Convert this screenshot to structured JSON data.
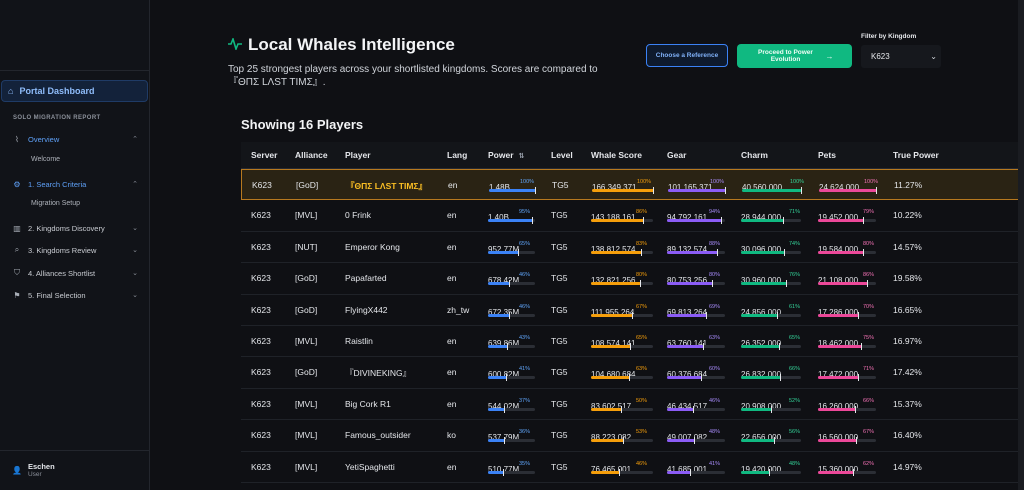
{
  "sidebar": {
    "dashboard": "Portal Dashboard",
    "section": "SOLO MIGRATION REPORT",
    "items": [
      {
        "label": "Overview",
        "icon": "activity-icon",
        "glyph": "⌇"
      },
      {
        "label": "1. Search Criteria",
        "icon": "gear-icon",
        "glyph": "⚙"
      },
      {
        "label": "2. Kingdoms Discovery",
        "icon": "map-icon",
        "glyph": "▥"
      },
      {
        "label": "3. Kingdoms Review",
        "icon": "search-icon",
        "glyph": "⌕"
      },
      {
        "label": "4. Alliances Shortlist",
        "icon": "shield-icon",
        "glyph": "⛉"
      },
      {
        "label": "5. Final Selection",
        "icon": "flag-icon",
        "glyph": "⚑"
      }
    ],
    "subs": [
      "Welcome",
      "Migration Setup"
    ],
    "user": {
      "name": "Eschen",
      "role": "User"
    }
  },
  "header": {
    "title": "Local Whales Intelligence",
    "subtitle": "Top 25 strongest players across your shortlisted kingdoms. Scores are compared to 『ΘΠΣ LΛST TIMΣ』.",
    "reference_button": "Choose a Reference",
    "proceed_button": "Proceed to Power Evolution",
    "proceed_arrow": "→",
    "filter_label": "Filter by Kingdom",
    "filter_value": "K623"
  },
  "showing": "Showing 16 Players",
  "columns": {
    "server": "Server",
    "alliance": "Alliance",
    "player": "Player",
    "lang": "Lang",
    "power": "Power",
    "level": "Level",
    "whale": "Whale Score",
    "gear": "Gear",
    "charm": "Charm",
    "pets": "Pets",
    "true_power": "True Power"
  },
  "colors": {
    "power": "#3b82f6",
    "whale": "#f59e0b",
    "gear": "#8b5cf6",
    "charm": "#10b981",
    "pets": "#ec4899",
    "highlight": "#b7791f"
  },
  "rows": [
    {
      "server": "K623",
      "alliance": "[GoD]",
      "player": "『ΘΠΣ LΛST TIMΣ』",
      "lang": "en",
      "level": "TG5",
      "true_power": "11.27%",
      "highlight": true,
      "power": {
        "v": "1.48B",
        "p": "100%",
        "f": 1.0
      },
      "whale": {
        "v": "166 349 371",
        "p": "100%",
        "f": 1.0
      },
      "gear": {
        "v": "101 165 371",
        "p": "100%",
        "f": 1.0
      },
      "charm": {
        "v": "40 560 000",
        "p": "100%",
        "f": 1.0
      },
      "pets": {
        "v": "24 624 000",
        "p": "100%",
        "f": 1.0
      }
    },
    {
      "server": "K623",
      "alliance": "[MVL]",
      "player": "0 Frink",
      "lang": "en",
      "level": "TG5",
      "true_power": "10.22%",
      "power": {
        "v": "1.40B",
        "p": "95%",
        "f": 0.95
      },
      "whale": {
        "v": "143 188 161",
        "p": "86%",
        "f": 0.86
      },
      "gear": {
        "v": "94 792 161",
        "p": "94%",
        "f": 0.94
      },
      "charm": {
        "v": "28 944 000",
        "p": "71%",
        "f": 0.71
      },
      "pets": {
        "v": "19 452 000",
        "p": "79%",
        "f": 0.79
      }
    },
    {
      "server": "K623",
      "alliance": "[NUT]",
      "player": "Emperor Kong",
      "lang": "en",
      "level": "TG5",
      "true_power": "14.57%",
      "power": {
        "v": "952.77M",
        "p": "65%",
        "f": 0.65
      },
      "whale": {
        "v": "138 812 574",
        "p": "83%",
        "f": 0.83
      },
      "gear": {
        "v": "89 132 574",
        "p": "88%",
        "f": 0.88
      },
      "charm": {
        "v": "30 096 000",
        "p": "74%",
        "f": 0.74
      },
      "pets": {
        "v": "19 584 000",
        "p": "80%",
        "f": 0.8
      }
    },
    {
      "server": "K623",
      "alliance": "[GoD]",
      "player": "Papafarted",
      "lang": "en",
      "level": "TG5",
      "true_power": "19.58%",
      "power": {
        "v": "678.42M",
        "p": "46%",
        "f": 0.46
      },
      "whale": {
        "v": "132 821 256",
        "p": "80%",
        "f": 0.8
      },
      "gear": {
        "v": "80 753 256",
        "p": "80%",
        "f": 0.8
      },
      "charm": {
        "v": "30 960 000",
        "p": "76%",
        "f": 0.76
      },
      "pets": {
        "v": "21 108 000",
        "p": "86%",
        "f": 0.86
      }
    },
    {
      "server": "K623",
      "alliance": "[GoD]",
      "player": "FlyingX442",
      "lang": "zh_tw",
      "level": "TG5",
      "true_power": "16.65%",
      "power": {
        "v": "672.35M",
        "p": "46%",
        "f": 0.46
      },
      "whale": {
        "v": "111 955 264",
        "p": "67%",
        "f": 0.67
      },
      "gear": {
        "v": "69 813 264",
        "p": "69%",
        "f": 0.69
      },
      "charm": {
        "v": "24 856 000",
        "p": "61%",
        "f": 0.61
      },
      "pets": {
        "v": "17 286 000",
        "p": "70%",
        "f": 0.7
      }
    },
    {
      "server": "K623",
      "alliance": "[MVL]",
      "player": "Raistlin",
      "lang": "en",
      "level": "TG5",
      "true_power": "16.97%",
      "power": {
        "v": "639.86M",
        "p": "43%",
        "f": 0.43
      },
      "whale": {
        "v": "108 574 141",
        "p": "65%",
        "f": 0.65
      },
      "gear": {
        "v": "63 760 141",
        "p": "63%",
        "f": 0.63
      },
      "charm": {
        "v": "26 352 000",
        "p": "65%",
        "f": 0.65
      },
      "pets": {
        "v": "18 462 000",
        "p": "75%",
        "f": 0.75
      }
    },
    {
      "server": "K623",
      "alliance": "[GoD]",
      "player": "『DIVINEKING』",
      "lang": "en",
      "level": "TG5",
      "true_power": "17.42%",
      "power": {
        "v": "600.82M",
        "p": "41%",
        "f": 0.41
      },
      "whale": {
        "v": "104 680 684",
        "p": "63%",
        "f": 0.63
      },
      "gear": {
        "v": "60 376 684",
        "p": "60%",
        "f": 0.6
      },
      "charm": {
        "v": "26 832 000",
        "p": "66%",
        "f": 0.66
      },
      "pets": {
        "v": "17 472 000",
        "p": "71%",
        "f": 0.71
      }
    },
    {
      "server": "K623",
      "alliance": "[MVL]",
      "player": "Big Cork R1",
      "lang": "en",
      "level": "TG5",
      "true_power": "15.37%",
      "power": {
        "v": "544.02M",
        "p": "37%",
        "f": 0.37
      },
      "whale": {
        "v": "83 602 517",
        "p": "50%",
        "f": 0.5
      },
      "gear": {
        "v": "46 434 517",
        "p": "46%",
        "f": 0.46
      },
      "charm": {
        "v": "20 908 000",
        "p": "52%",
        "f": 0.52
      },
      "pets": {
        "v": "16 260 000",
        "p": "66%",
        "f": 0.66
      }
    },
    {
      "server": "K623",
      "alliance": "[MVL]",
      "player": "Famous_outsider",
      "lang": "ko",
      "level": "TG5",
      "true_power": "16.40%",
      "power": {
        "v": "537.79M",
        "p": "36%",
        "f": 0.36
      },
      "whale": {
        "v": "88 223 082",
        "p": "53%",
        "f": 0.53
      },
      "gear": {
        "v": "49 007 082",
        "p": "48%",
        "f": 0.48
      },
      "charm": {
        "v": "22 656 000",
        "p": "56%",
        "f": 0.56
      },
      "pets": {
        "v": "16 560 000",
        "p": "67%",
        "f": 0.67
      }
    },
    {
      "server": "K623",
      "alliance": "[MVL]",
      "player": "YetiSpaghetti",
      "lang": "en",
      "level": "TG5",
      "true_power": "14.97%",
      "power": {
        "v": "510.77M",
        "p": "35%",
        "f": 0.35
      },
      "whale": {
        "v": "76 465 001",
        "p": "46%",
        "f": 0.46
      },
      "gear": {
        "v": "41 685 001",
        "p": "41%",
        "f": 0.41
      },
      "charm": {
        "v": "19 420 000",
        "p": "48%",
        "f": 0.48
      },
      "pets": {
        "v": "15 360 000",
        "p": "62%",
        "f": 0.62
      }
    }
  ]
}
